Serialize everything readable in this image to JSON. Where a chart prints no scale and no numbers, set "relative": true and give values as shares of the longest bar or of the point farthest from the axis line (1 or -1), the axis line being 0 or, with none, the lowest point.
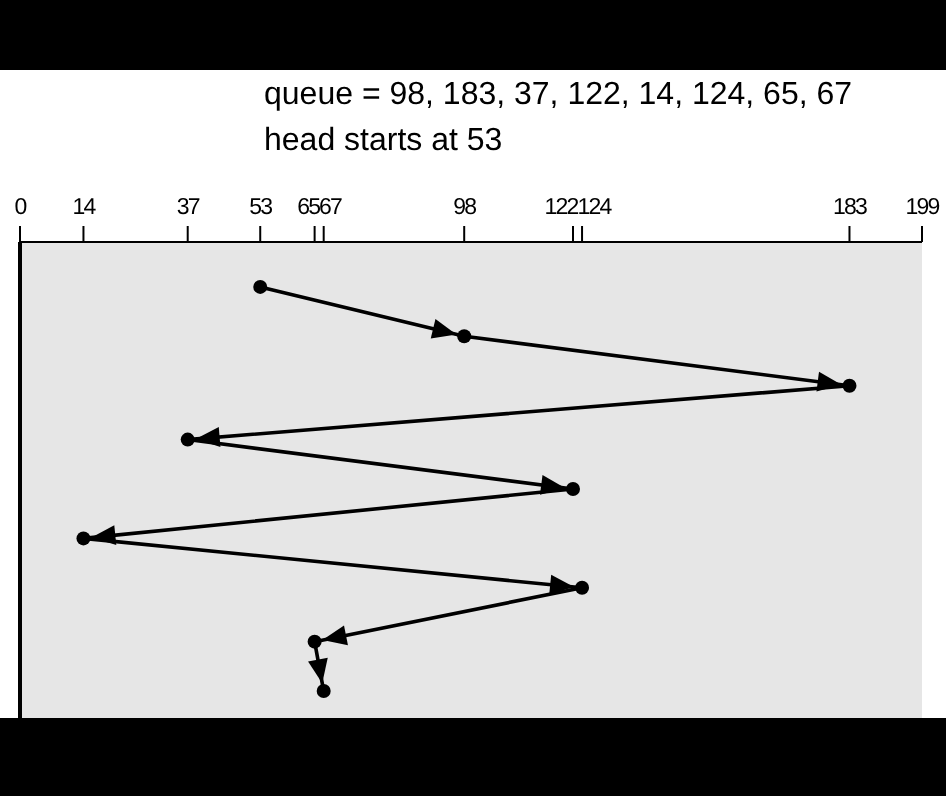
{
  "chart_data": {
    "type": "line",
    "title": "queue = 98, 183, 37, 122, 14, 124, 65, 67",
    "subtitle": "head starts at 53",
    "relative": true,
    "xlim": [
      0,
      199
    ],
    "xticks": [
      0,
      14,
      37,
      53,
      65,
      67,
      98,
      122,
      124,
      183,
      199
    ],
    "marker": "circle",
    "line_style": "solid",
    "series": [
      {
        "color": "#000000",
        "x": [
          53,
          98,
          183,
          37,
          122,
          14,
          124,
          65,
          67
        ],
        "values": [
          -0.1,
          -0.21,
          -0.32,
          -0.44,
          -0.55,
          -0.66,
          -0.77,
          -0.89,
          -1
        ]
      }
    ]
  }
}
